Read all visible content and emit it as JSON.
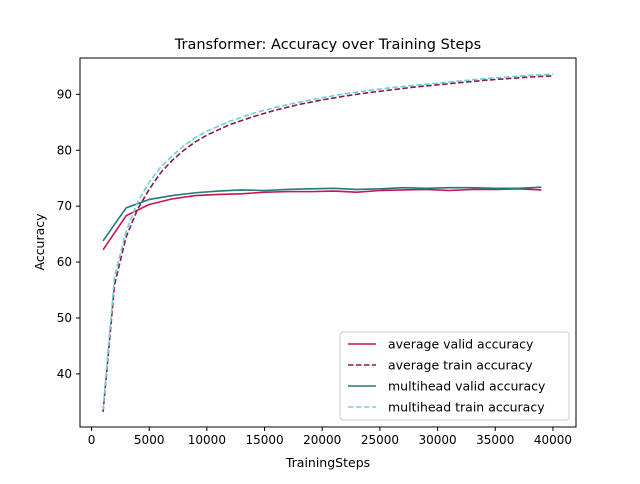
{
  "chart_data": {
    "type": "line",
    "title": "Transformer: Accuracy over Training Steps",
    "xlabel": "TrainingSteps",
    "ylabel": "Accuracy",
    "xlim": [
      -1000,
      42000
    ],
    "ylim": [
      30.5,
      96.5
    ],
    "xticks": [
      0,
      5000,
      10000,
      15000,
      20000,
      25000,
      30000,
      35000,
      40000
    ],
    "yticks": [
      40,
      50,
      60,
      70,
      80,
      90
    ],
    "grid": false,
    "legend_position": "lower-right",
    "series": [
      {
        "name": "average valid accuracy",
        "color": "#cc1155",
        "dash": "solid",
        "x": [
          1000,
          3000,
          5000,
          7000,
          9000,
          11000,
          13000,
          15000,
          17000,
          19000,
          21000,
          23000,
          25000,
          27000,
          29000,
          31000,
          33000,
          35000,
          37000,
          39000
        ],
        "y": [
          62.2,
          68.3,
          70.3,
          71.3,
          71.9,
          72.1,
          72.2,
          72.5,
          72.6,
          72.6,
          72.7,
          72.5,
          72.8,
          72.9,
          73.0,
          72.8,
          73.0,
          73.0,
          73.1,
          72.9
        ]
      },
      {
        "name": "average train accuracy",
        "color": "#8b1a4a",
        "dash": "dashed",
        "x": [
          1000,
          2000,
          3000,
          4000,
          5000,
          6000,
          7000,
          8000,
          9000,
          10000,
          12000,
          14000,
          16000,
          18000,
          20000,
          22000,
          24000,
          26000,
          28000,
          30000,
          32000,
          34000,
          36000,
          38000,
          40000
        ],
        "y": [
          33.2,
          56.0,
          64.5,
          69.5,
          73.0,
          76.0,
          78.2,
          80.0,
          81.5,
          82.7,
          84.6,
          86.0,
          87.2,
          88.2,
          89.0,
          89.7,
          90.3,
          90.8,
          91.3,
          91.7,
          92.1,
          92.5,
          92.8,
          93.1,
          93.3
        ]
      },
      {
        "name": "multihead valid accuracy",
        "color": "#1f7a7a",
        "dash": "solid",
        "x": [
          1000,
          3000,
          5000,
          7000,
          9000,
          11000,
          13000,
          15000,
          17000,
          19000,
          21000,
          23000,
          25000,
          27000,
          29000,
          31000,
          33000,
          35000,
          37000,
          39000
        ],
        "y": [
          63.8,
          69.7,
          71.2,
          71.9,
          72.4,
          72.7,
          72.9,
          72.8,
          73.0,
          73.1,
          73.2,
          73.0,
          73.1,
          73.3,
          73.2,
          73.3,
          73.3,
          73.2,
          73.2,
          73.4
        ]
      },
      {
        "name": "multihead train accuracy",
        "color": "#6fcfd8",
        "dash": "dashed",
        "x": [
          1000,
          2000,
          3000,
          4000,
          5000,
          6000,
          7000,
          8000,
          9000,
          10000,
          12000,
          14000,
          16000,
          18000,
          20000,
          22000,
          24000,
          26000,
          28000,
          30000,
          32000,
          34000,
          36000,
          38000,
          40000
        ],
        "y": [
          33.6,
          57.5,
          65.5,
          70.8,
          74.3,
          77.0,
          79.0,
          80.8,
          82.3,
          83.4,
          85.2,
          86.6,
          87.7,
          88.6,
          89.4,
          90.1,
          90.7,
          91.2,
          91.6,
          92.0,
          92.4,
          92.8,
          93.1,
          93.4,
          93.6
        ]
      }
    ]
  }
}
